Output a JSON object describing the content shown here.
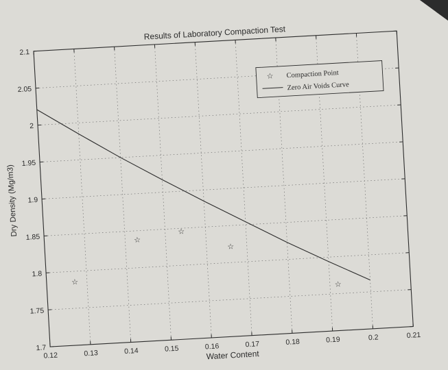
{
  "colors": {
    "paper": "#dcdbd6",
    "ink": "#2b2b2b",
    "grid": "#6e6e6e"
  },
  "chart_data": {
    "type": "scatter",
    "title": "Results of Laboratory Compaction Test",
    "xlabel": "Water Content",
    "ylabel": "Dry Density (Mg/m3)",
    "xlim": [
      0.12,
      0.21
    ],
    "ylim": [
      1.7,
      2.1
    ],
    "grid": true,
    "legend_position": "top-right",
    "x_ticks": [
      "0.12",
      "0.13",
      "0.14",
      "0.15",
      "0.16",
      "0.17",
      "0.18",
      "0.19",
      "0.2",
      "0.21"
    ],
    "x_tick_values": [
      0.12,
      0.13,
      0.14,
      0.15,
      0.16,
      0.17,
      0.18,
      0.19,
      0.2,
      0.21
    ],
    "y_ticks": [
      "1.7",
      "1.75",
      "1.8",
      "1.85",
      "1.9",
      "1.95",
      "2",
      "2.05",
      "2.1"
    ],
    "y_tick_values": [
      1.7,
      1.75,
      1.8,
      1.85,
      1.9,
      1.95,
      2.0,
      2.05,
      2.1
    ],
    "series": [
      {
        "name": "Compaction Point",
        "kind": "scatter",
        "marker": "star",
        "x": [
          0.127,
          0.143,
          0.154,
          0.166,
          0.192
        ],
        "y": [
          1.786,
          1.838,
          1.846,
          1.822,
          1.763
        ]
      },
      {
        "name": "Zero Air Voids Curve",
        "kind": "line",
        "x": [
          0.12,
          0.13,
          0.14,
          0.15,
          0.16,
          0.17,
          0.18,
          0.19,
          0.2
        ],
        "y": [
          2.021,
          1.985,
          1.95,
          1.917,
          1.885,
          1.854,
          1.823,
          1.794,
          1.766
        ]
      }
    ]
  }
}
